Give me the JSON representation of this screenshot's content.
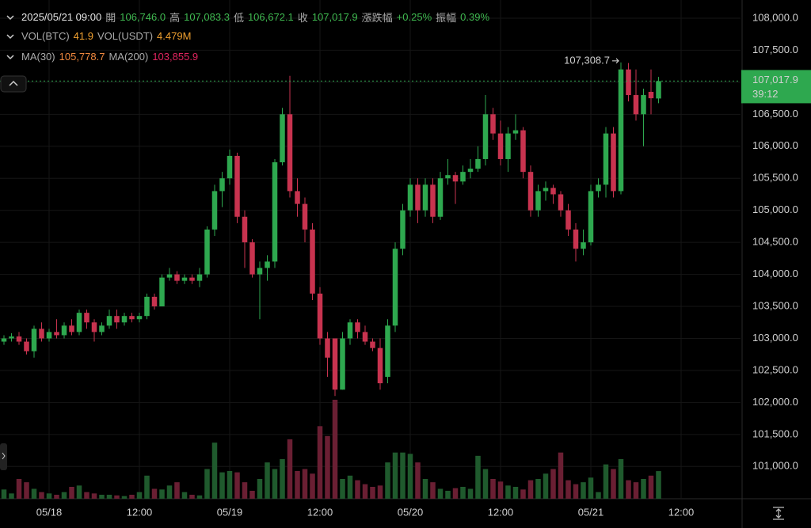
{
  "header": {
    "datetime": "2025/05/21 09:00",
    "fields": [
      {
        "label": "開",
        "value": "106,746.0"
      },
      {
        "label": "高",
        "value": "107,083.3"
      },
      {
        "label": "低",
        "value": "106,672.1"
      },
      {
        "label": "收",
        "value": "107,017.9"
      },
      {
        "label": "漲跌幅",
        "value": "+0.25%"
      },
      {
        "label": "振幅",
        "value": "0.39%"
      }
    ]
  },
  "volume_row": [
    {
      "label": "VOL(BTC)",
      "value": "41.9",
      "color": "#f0a030"
    },
    {
      "label": "VOL(USDT)",
      "value": "4.479M",
      "color": "#f0a030"
    }
  ],
  "ma_row": [
    {
      "label": "MA(30)",
      "value": "105,778.7",
      "color": "#f0883e"
    },
    {
      "label": "MA(200)",
      "value": "103,855.9",
      "color": "#e0245e"
    }
  ],
  "chart_data": {
    "type": "candlestick",
    "open": [
      102950,
      103000,
      103030,
      102950,
      102800,
      103150,
      103000,
      103100,
      103050,
      103200,
      103100,
      103400,
      103250,
      103100,
      103200,
      103350,
      103250,
      103350,
      103300,
      103350,
      103650,
      103500,
      103950,
      104000,
      103900,
      103950,
      103900,
      104000,
      104700,
      105300,
      105500,
      105850,
      104900,
      104500,
      104000,
      104100,
      104200,
      105750,
      106500,
      105300,
      105100,
      104700,
      103700,
      103000,
      103000,
      102200,
      103000,
      103250,
      103100,
      102950,
      102850,
      102400,
      103200,
      104400,
      105000,
      105400,
      105000,
      105400,
      104900,
      105500,
      105550,
      105450,
      105600,
      105650,
      105800,
      106500,
      106200,
      105800,
      106200,
      106250,
      105600,
      105000,
      105300,
      105350,
      105250,
      105000,
      104700,
      104400,
      104500,
      105300,
      105400,
      106200,
      105300,
      107200,
      106800,
      106500,
      106850,
      106746
    ],
    "high": [
      103050,
      103080,
      103100,
      103000,
      103200,
      103250,
      103150,
      103300,
      103250,
      103300,
      103450,
      103450,
      103300,
      103250,
      103450,
      103450,
      103400,
      103400,
      103400,
      103700,
      103700,
      104000,
      104100,
      104050,
      104000,
      104000,
      104100,
      104750,
      105400,
      105600,
      105950,
      105900,
      105000,
      104550,
      104200,
      104300,
      105800,
      106600,
      107100,
      105500,
      105200,
      104800,
      103800,
      103100,
      103000,
      103100,
      103300,
      103300,
      103200,
      103000,
      103000,
      103300,
      104500,
      105100,
      105500,
      105500,
      105500,
      105500,
      105600,
      105800,
      105600,
      105700,
      105800,
      106000,
      106800,
      106600,
      106400,
      106300,
      106500,
      106300,
      105700,
      105400,
      105450,
      105400,
      105300,
      105100,
      104800,
      104700,
      105400,
      105500,
      106300,
      106300,
      107308.7,
      107300,
      107200,
      106900,
      107200,
      107083.3
    ],
    "low": [
      102900,
      102950,
      102900,
      102750,
      102700,
      102950,
      102950,
      103000,
      103000,
      103050,
      103050,
      103150,
      102950,
      103050,
      103150,
      103150,
      103200,
      103250,
      103250,
      103300,
      103450,
      103500,
      103900,
      103850,
      103850,
      103850,
      103800,
      103950,
      104600,
      105050,
      105400,
      104800,
      104100,
      103950,
      103300,
      103900,
      104100,
      105700,
      105200,
      104900,
      104500,
      103600,
      102900,
      102400,
      102100,
      102200,
      102900,
      103000,
      102900,
      102800,
      102200,
      102300,
      103100,
      104300,
      104900,
      104800,
      104900,
      104800,
      104850,
      105400,
      105100,
      105400,
      105500,
      105600,
      105700,
      106100,
      105700,
      105600,
      106100,
      105500,
      104900,
      104900,
      105150,
      105100,
      104900,
      104600,
      104200,
      104300,
      104450,
      105200,
      105200,
      105200,
      105250,
      106700,
      106400,
      106000,
      106500,
      106672.1
    ],
    "close": [
      103000,
      103030,
      102950,
      102800,
      103150,
      103000,
      103100,
      103050,
      103200,
      103100,
      103400,
      103250,
      103100,
      103200,
      103350,
      103250,
      103350,
      103300,
      103350,
      103650,
      103500,
      103950,
      104000,
      103900,
      103950,
      103900,
      104000,
      104700,
      105300,
      105500,
      105850,
      104900,
      104500,
      104000,
      104100,
      104200,
      105750,
      106500,
      105300,
      105100,
      104700,
      103700,
      103000,
      102700,
      102200,
      103000,
      103250,
      103100,
      102950,
      102850,
      102300,
      103200,
      104400,
      105000,
      105400,
      105000,
      105400,
      104900,
      105500,
      105550,
      105450,
      105600,
      105650,
      105800,
      106500,
      106200,
      105800,
      106200,
      106250,
      105600,
      105000,
      105300,
      105350,
      105250,
      105000,
      104700,
      104400,
      104500,
      105300,
      105400,
      106200,
      105300,
      107200,
      106800,
      106500,
      106800,
      106750,
      107017.9
    ],
    "volume": [
      14,
      8,
      30,
      25,
      15,
      10,
      8,
      6,
      10,
      18,
      20,
      10,
      8,
      6,
      6,
      5,
      4,
      6,
      10,
      35,
      15,
      14,
      20,
      25,
      10,
      6,
      5,
      45,
      85,
      40,
      42,
      40,
      25,
      12,
      30,
      55,
      45,
      60,
      90,
      42,
      45,
      38,
      110,
      95,
      150,
      30,
      35,
      28,
      22,
      18,
      20,
      55,
      70,
      70,
      68,
      55,
      30,
      25,
      15,
      12,
      16,
      18,
      15,
      65,
      45,
      30,
      26,
      20,
      18,
      14,
      28,
      30,
      38,
      45,
      70,
      28,
      22,
      25,
      32,
      10,
      52,
      45,
      60,
      28,
      25,
      30,
      35,
      41.9
    ],
    "up_color": "#2ea84f",
    "down_color": "#c8334f",
    "up_volume_color": "#1f5a2d",
    "down_volume_color": "#6a1f33",
    "ylim": [
      100497,
      108284
    ],
    "yticks": [
      {
        "value": 101000,
        "label": "101,000.0"
      },
      {
        "value": 101500,
        "label": "101,500.0"
      },
      {
        "value": 102000,
        "label": "102,000.0"
      },
      {
        "value": 102500,
        "label": "102,500.0"
      },
      {
        "value": 103000,
        "label": "103,000.0"
      },
      {
        "value": 103500,
        "label": "103,500.0"
      },
      {
        "value": 104000,
        "label": "104,000.0"
      },
      {
        "value": 104500,
        "label": "104,500.0"
      },
      {
        "value": 105000,
        "label": "105,000.0"
      },
      {
        "value": 105500,
        "label": "105,500.0"
      },
      {
        "value": 106000,
        "label": "106,000.0"
      },
      {
        "value": 106500,
        "label": "106,500.0"
      },
      {
        "value": 107000,
        "label": "107,000.0"
      },
      {
        "value": 107500,
        "label": "107,500.0"
      },
      {
        "value": 108000,
        "label": "108,000.0"
      }
    ],
    "xticks": [
      "05/18",
      "12:00",
      "05/19",
      "12:00",
      "05/20",
      "12:00",
      "05/21",
      "12:00"
    ],
    "high_label": "107,308.7",
    "last_price_label": "107,017.9",
    "countdown": "39:12",
    "grid": true
  }
}
